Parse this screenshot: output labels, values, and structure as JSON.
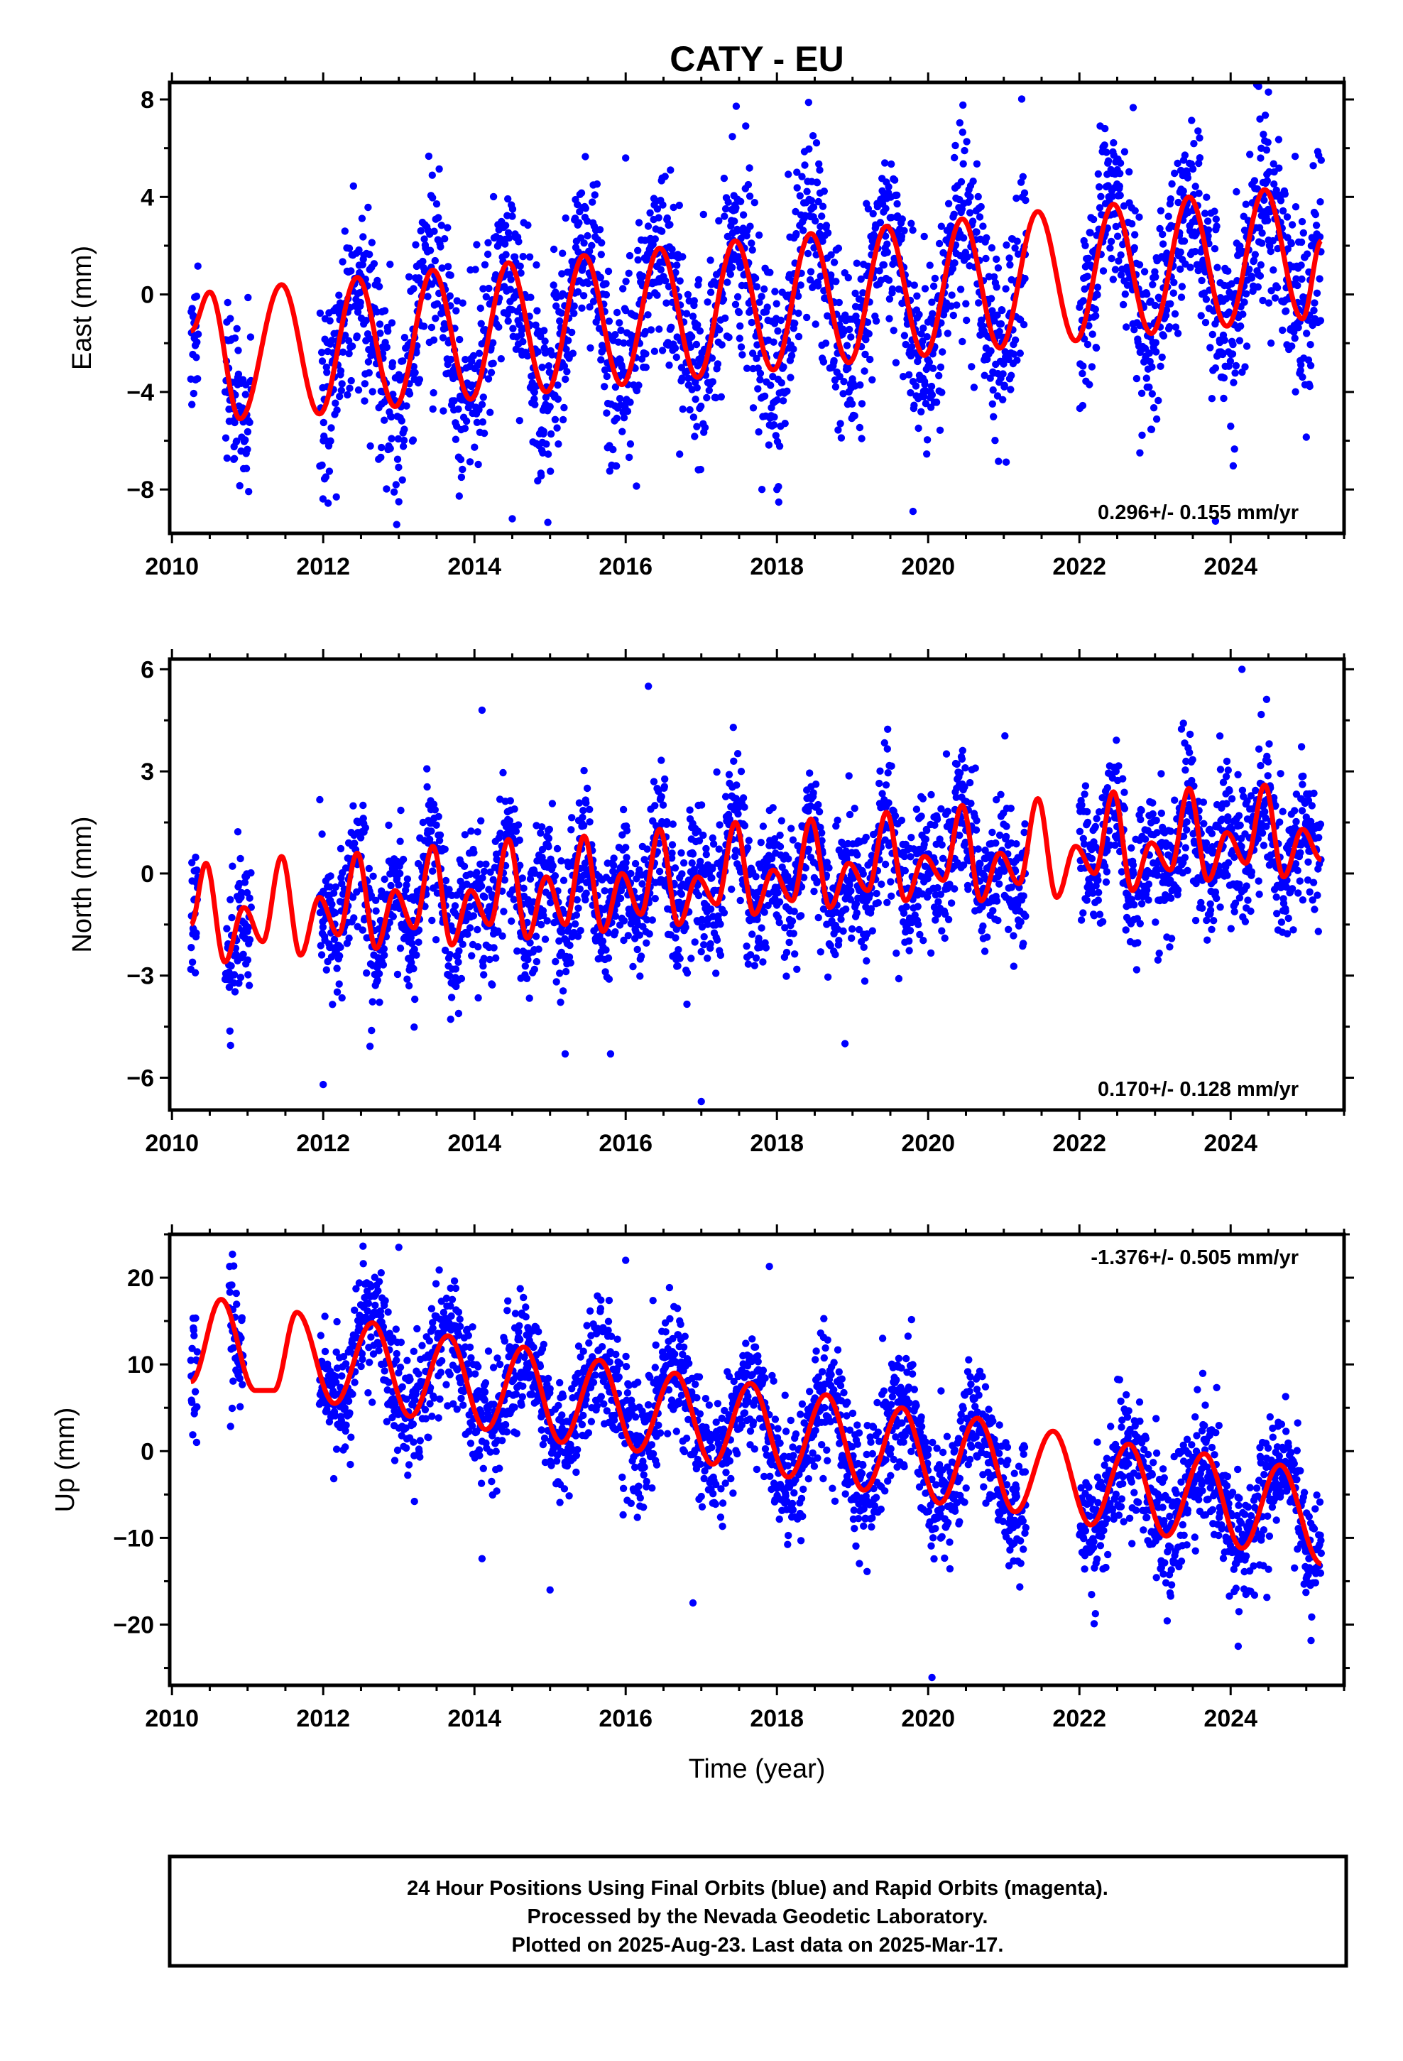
{
  "title": "CATY - EU",
  "footer": {
    "lines": [
      "24 Hour Positions Using Final Orbits (blue) and Rapid Orbits (magenta).",
      "Processed by the Nevada Geodetic Laboratory.",
      "Plotted on 2025-Aug-23. Last data on 2025-Mar-17."
    ]
  },
  "colors": {
    "data_points": "#0000ff",
    "model_fit": "#ff0000",
    "frame": "#000000"
  },
  "chart_data": [
    {
      "type": "scatter",
      "name": "east",
      "ylabel": "East (mm)",
      "xlabel": "",
      "xlim": [
        2009.97,
        2025.5
      ],
      "ylim": [
        -9.8,
        8.7
      ],
      "xticks": [
        2010,
        2012,
        2014,
        2016,
        2018,
        2020,
        2022,
        2024
      ],
      "yticks": [
        -8,
        -4,
        0,
        4,
        8
      ],
      "rate_text": "0.296+/- 0.155 mm/yr",
      "rate_position": "bottom-right",
      "fit_curve": {
        "description_values": "seasonal model",
        "x": [
          2010.25,
          2010.5,
          2010.9,
          2011.45,
          2011.95,
          2012.45,
          2012.95,
          2013.45,
          2013.95,
          2014.45,
          2014.95,
          2015.45,
          2015.95,
          2016.45,
          2016.95,
          2017.45,
          2017.95,
          2018.45,
          2018.95,
          2019.45,
          2019.95,
          2020.45,
          2020.95,
          2021.45,
          2021.95,
          2022.45,
          2022.95,
          2023.45,
          2023.95,
          2024.45,
          2024.95,
          2025.2
        ],
        "y": [
          -1.5,
          0.1,
          -5.1,
          0.4,
          -4.9,
          0.7,
          -4.6,
          1.0,
          -4.3,
          1.3,
          -4.0,
          1.6,
          -3.7,
          1.9,
          -3.4,
          2.2,
          -3.1,
          2.5,
          -2.8,
          2.8,
          -2.5,
          3.1,
          -2.2,
          3.4,
          -1.9,
          3.7,
          -1.6,
          4.0,
          -1.3,
          4.3,
          -1.0,
          2.2
        ]
      },
      "points": {
        "gaps": [
          [
            2010.35,
            2010.7
          ],
          [
            2011.05,
            2011.95
          ],
          [
            2021.3,
            2022.0
          ]
        ],
        "outliers": [
          [
            2016.0,
            5.6
          ],
          [
            2024.5,
            8.3
          ],
          [
            2022.8,
            -6.5
          ],
          [
            2014.5,
            -9.2
          ],
          [
            2019.8,
            -8.9
          ],
          [
            2023.8,
            -9.3
          ],
          [
            2013.0,
            -8.5
          ],
          [
            2018.0,
            -8.0
          ]
        ]
      }
    },
    {
      "type": "scatter",
      "name": "north",
      "ylabel": "North (mm)",
      "xlabel": "",
      "xlim": [
        2009.97,
        2025.5
      ],
      "ylim": [
        -6.95,
        6.3
      ],
      "xticks": [
        2010,
        2012,
        2014,
        2016,
        2018,
        2020,
        2022,
        2024
      ],
      "yticks": [
        -6,
        -3,
        0,
        3,
        6
      ],
      "rate_text": "0.170+/- 0.128 mm/yr",
      "rate_position": "bottom-right",
      "fit_curve": {
        "x": [
          2010.25,
          2010.45,
          2010.7,
          2010.95,
          2011.2,
          2011.45,
          2011.7,
          2011.95,
          2012.2,
          2012.45,
          2012.7,
          2012.95,
          2013.2,
          2013.45,
          2013.7,
          2013.95,
          2014.2,
          2014.45,
          2014.7,
          2014.95,
          2015.2,
          2015.45,
          2015.7,
          2015.95,
          2016.2,
          2016.45,
          2016.7,
          2016.95,
          2017.2,
          2017.45,
          2017.7,
          2017.95,
          2018.2,
          2018.45,
          2018.7,
          2018.95,
          2019.2,
          2019.45,
          2019.7,
          2019.95,
          2020.2,
          2020.45,
          2020.7,
          2020.95,
          2021.2,
          2021.45,
          2021.7,
          2021.95,
          2022.2,
          2022.45,
          2022.7,
          2022.95,
          2023.2,
          2023.45,
          2023.7,
          2023.95,
          2024.2,
          2024.45,
          2024.7,
          2024.95,
          2025.2
        ],
        "y": [
          -1.5,
          0.3,
          -2.6,
          -1.0,
          -2.0,
          0.5,
          -2.4,
          -0.7,
          -1.8,
          0.6,
          -2.2,
          -0.5,
          -1.6,
          0.8,
          -2.1,
          -0.5,
          -1.5,
          1.0,
          -1.9,
          -0.1,
          -1.5,
          1.1,
          -1.7,
          0.0,
          -1.2,
          1.3,
          -1.5,
          -0.1,
          -0.9,
          1.5,
          -1.2,
          0.1,
          -0.8,
          1.6,
          -1.0,
          0.3,
          -0.5,
          1.8,
          -0.8,
          0.5,
          -0.2,
          2.0,
          -0.8,
          0.6,
          -0.3,
          2.2,
          -0.7,
          0.8,
          0.0,
          2.4,
          -0.5,
          0.9,
          0.1,
          2.5,
          -0.2,
          1.2,
          0.3,
          2.6,
          -0.1,
          1.3,
          0.4
        ]
      },
      "points": {
        "gaps": [
          [
            2010.35,
            2010.7
          ],
          [
            2011.05,
            2011.95
          ],
          [
            2021.3,
            2022.0
          ]
        ],
        "outliers": [
          [
            2016.3,
            5.5
          ],
          [
            2024.15,
            6.0
          ],
          [
            2014.1,
            4.8
          ],
          [
            2012.0,
            -6.2
          ],
          [
            2017.0,
            -6.7
          ],
          [
            2015.2,
            -5.3
          ],
          [
            2015.8,
            -5.3
          ],
          [
            2018.9,
            -5.0
          ]
        ]
      }
    },
    {
      "type": "scatter",
      "name": "up",
      "ylabel": "Up (mm)",
      "xlabel": "Time (year)",
      "xlim": [
        2009.97,
        2025.5
      ],
      "ylim": [
        -27,
        25
      ],
      "xticks": [
        2010,
        2012,
        2014,
        2016,
        2018,
        2020,
        2022,
        2024
      ],
      "yticks": [
        -20,
        -10,
        0,
        10,
        20
      ],
      "rate_text": "-1.376+/- 0.505 mm/yr",
      "rate_position": "top-right",
      "fit_curve": {
        "x": [
          2010.25,
          2010.65,
          2011.1,
          2011.35,
          2011.65,
          2012.15,
          2012.65,
          2013.15,
          2013.65,
          2014.15,
          2014.65,
          2015.15,
          2015.65,
          2016.15,
          2016.65,
          2017.15,
          2017.65,
          2018.15,
          2018.65,
          2019.15,
          2019.65,
          2020.15,
          2020.65,
          2021.15,
          2021.65,
          2022.15,
          2022.65,
          2023.15,
          2023.65,
          2024.15,
          2024.65,
          2025.2
        ],
        "y": [
          8.0,
          17.5,
          7.0,
          7.0,
          16.0,
          5.5,
          14.8,
          4.0,
          13.3,
          2.5,
          12.0,
          1.0,
          10.5,
          0.0,
          9.0,
          -1.5,
          7.8,
          -3.0,
          6.5,
          -4.5,
          5.0,
          -6.0,
          3.8,
          -7.0,
          2.3,
          -8.5,
          0.8,
          -9.8,
          -0.3,
          -11.2,
          -1.6,
          -13.0
        ]
      },
      "points": {
        "gaps": [
          [
            2010.35,
            2010.75
          ],
          [
            2010.95,
            2011.95
          ],
          [
            2021.3,
            2022.0
          ]
        ],
        "outliers": [
          [
            2010.8,
            22.7
          ],
          [
            2013.0,
            23.5
          ],
          [
            2016.0,
            22.0
          ],
          [
            2017.9,
            21.3
          ],
          [
            2020.05,
            -26.1
          ],
          [
            2015.0,
            -16.0
          ],
          [
            2024.1,
            -22.5
          ],
          [
            2014.1,
            -12.4
          ]
        ]
      }
    }
  ]
}
